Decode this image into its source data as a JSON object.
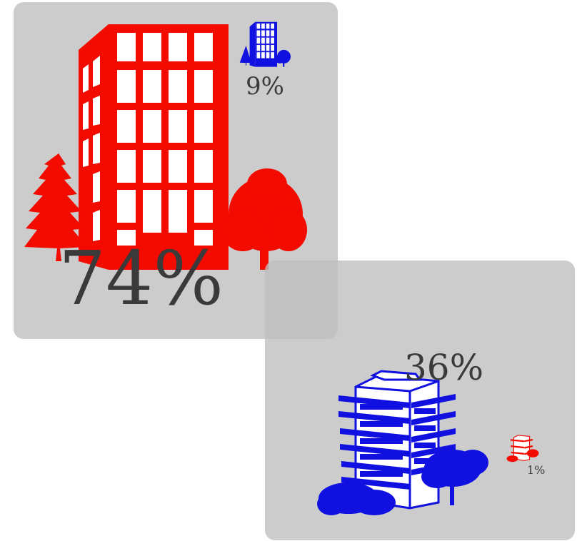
{
  "chart_data": {
    "type": "pictogram",
    "colors": {
      "red": "#f40b00",
      "blue": "#1010e0",
      "panel": "#c4c4c4",
      "text": "#3a3a3a"
    },
    "panels": [
      {
        "items": [
          {
            "icon": "office-building-with-trees-icon",
            "color": "red",
            "value": 74,
            "label": "74%"
          },
          {
            "icon": "office-building-with-trees-icon",
            "color": "blue",
            "value": 9,
            "label": "9%"
          }
        ]
      },
      {
        "items": [
          {
            "icon": "apartment-building-with-trees-icon",
            "color": "blue",
            "value": 36,
            "label": "36%"
          },
          {
            "icon": "apartment-building-with-trees-icon",
            "color": "red",
            "value": 1,
            "label": "1%"
          }
        ]
      }
    ]
  }
}
